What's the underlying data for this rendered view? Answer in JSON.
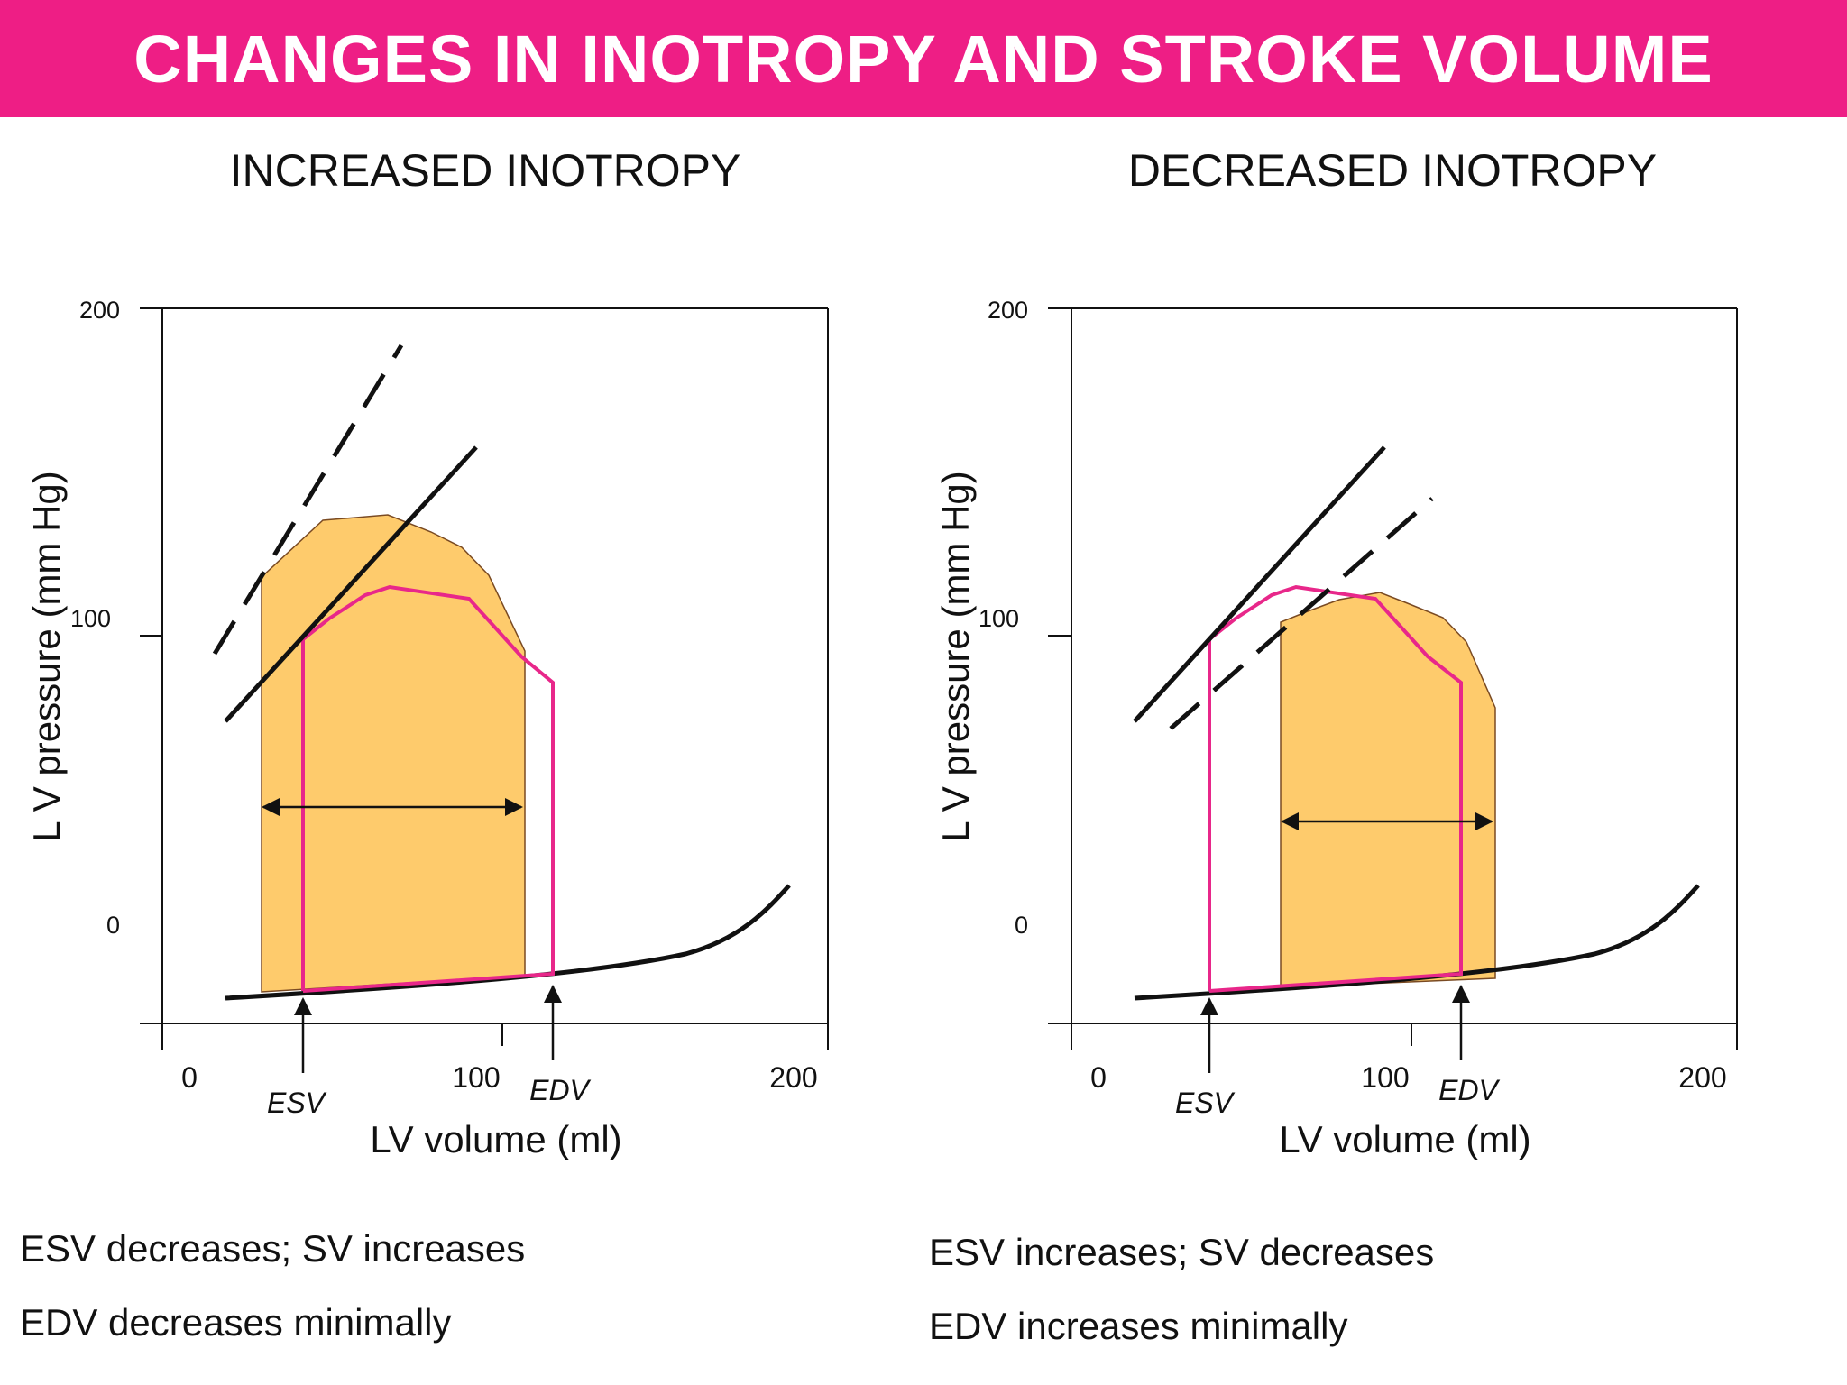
{
  "header": {
    "title": "CHANGES IN INOTROPY AND STROKE VOLUME"
  },
  "colors": {
    "banner": "#ee1e85",
    "loop_outline": "#e8278a",
    "loop_fill": "#fecb6c",
    "fill_edge": "#7a4a22",
    "ink": "#111111"
  },
  "panels": [
    {
      "title": "INCREASED INOTROPY",
      "y_ticks": [
        "200",
        "100",
        "0"
      ],
      "x_ticks": [
        "0",
        "100",
        "200"
      ],
      "y_axis_label": "L V  pressure (mm Hg)",
      "x_axis_label": "LV volume (ml)",
      "esv_label": "ESV",
      "edv_label": "EDV",
      "notes": [
        "ESV decreases; SV increases",
        "EDV decreases minimally"
      ]
    },
    {
      "title": "DECREASED INOTROPY",
      "y_ticks": [
        "200",
        "100",
        "0"
      ],
      "x_ticks": [
        "0",
        "100",
        "200"
      ],
      "y_axis_label": "L V  pressure (mm Hg)",
      "x_axis_label": "LV volume (ml)",
      "esv_label": "ESV",
      "edv_label": "EDV",
      "notes": [
        "ESV increases; SV decreases",
        "EDV increases minimally"
      ]
    }
  ]
}
